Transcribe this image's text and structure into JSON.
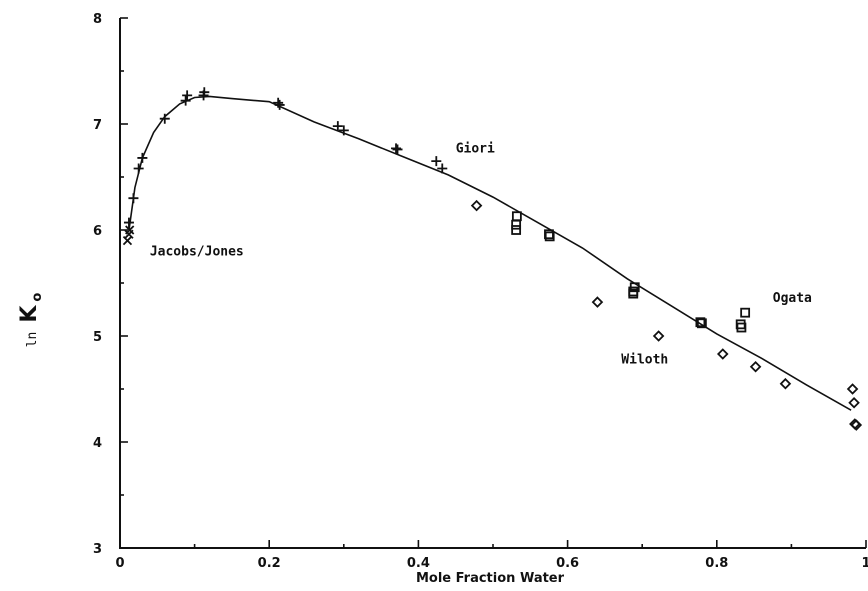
{
  "chart_data": {
    "type": "scatter",
    "title": "",
    "xlabel": "Mole Fraction Water",
    "ylabel": {
      "prefix": "ln",
      "symbol": "K",
      "subscript": "o"
    },
    "xlim": [
      0,
      1
    ],
    "ylim": [
      3,
      8
    ],
    "x_ticks": [
      {
        "value": 0,
        "label": "0"
      },
      {
        "value": 0.2,
        "label": "0.2"
      },
      {
        "value": 0.4,
        "label": "0.4"
      },
      {
        "value": 0.6,
        "label": "0.6"
      },
      {
        "value": 0.8,
        "label": "0.8"
      },
      {
        "value": 1,
        "label": "1"
      }
    ],
    "y_ticks": [
      {
        "value": 3,
        "label": "3"
      },
      {
        "value": 4,
        "label": "4"
      },
      {
        "value": 5,
        "label": "5"
      },
      {
        "value": 6,
        "label": "6"
      },
      {
        "value": 7,
        "label": "7"
      },
      {
        "value": 8,
        "label": "8"
      }
    ],
    "grid": false,
    "series": [
      {
        "marker": "cross",
        "points": [
          {
            "x": 0.01,
            "y": 5.9
          },
          {
            "x": 0.012,
            "y": 5.96
          },
          {
            "x": 0.013,
            "y": 6.0
          }
        ]
      },
      {
        "marker": "plus",
        "points": [
          {
            "x": 0.012,
            "y": 6.07
          },
          {
            "x": 0.018,
            "y": 6.3
          },
          {
            "x": 0.025,
            "y": 6.58
          },
          {
            "x": 0.03,
            "y": 6.68
          },
          {
            "x": 0.06,
            "y": 7.05
          },
          {
            "x": 0.088,
            "y": 7.22
          },
          {
            "x": 0.09,
            "y": 7.27
          },
          {
            "x": 0.112,
            "y": 7.27
          },
          {
            "x": 0.113,
            "y": 7.3
          },
          {
            "x": 0.212,
            "y": 7.2
          },
          {
            "x": 0.214,
            "y": 7.18
          },
          {
            "x": 0.292,
            "y": 6.98
          },
          {
            "x": 0.3,
            "y": 6.94
          },
          {
            "x": 0.37,
            "y": 6.77
          },
          {
            "x": 0.372,
            "y": 6.76
          },
          {
            "x": 0.424,
            "y": 6.65
          },
          {
            "x": 0.432,
            "y": 6.58
          }
        ]
      },
      {
        "marker": "square",
        "points": [
          {
            "x": 0.532,
            "y": 6.13
          },
          {
            "x": 0.531,
            "y": 6.05
          },
          {
            "x": 0.531,
            "y": 6.0
          },
          {
            "x": 0.575,
            "y": 5.96
          },
          {
            "x": 0.576,
            "y": 5.94
          },
          {
            "x": 0.69,
            "y": 5.46
          },
          {
            "x": 0.688,
            "y": 5.42
          },
          {
            "x": 0.688,
            "y": 5.4
          },
          {
            "x": 0.778,
            "y": 5.13
          },
          {
            "x": 0.78,
            "y": 5.12
          },
          {
            "x": 0.832,
            "y": 5.11
          },
          {
            "x": 0.833,
            "y": 5.08
          },
          {
            "x": 0.838,
            "y": 5.22
          }
        ]
      },
      {
        "marker": "diamond",
        "points": [
          {
            "x": 0.478,
            "y": 6.23
          },
          {
            "x": 0.64,
            "y": 5.32
          },
          {
            "x": 0.722,
            "y": 5.0
          },
          {
            "x": 0.808,
            "y": 4.83
          },
          {
            "x": 0.852,
            "y": 4.71
          },
          {
            "x": 0.892,
            "y": 4.55
          },
          {
            "x": 0.982,
            "y": 4.5
          },
          {
            "x": 0.984,
            "y": 4.37
          },
          {
            "x": 0.985,
            "y": 4.17
          },
          {
            "x": 0.987,
            "y": 4.16
          }
        ]
      }
    ],
    "fit_line": {
      "x": [
        0.012,
        0.02,
        0.03,
        0.045,
        0.06,
        0.08,
        0.1,
        0.12,
        0.15,
        0.2,
        0.26,
        0.32,
        0.38,
        0.44,
        0.5,
        0.56,
        0.62,
        0.68,
        0.74,
        0.8,
        0.86,
        0.92,
        0.98
      ],
      "y": [
        6.0,
        6.4,
        6.68,
        6.92,
        7.07,
        7.19,
        7.25,
        7.26,
        7.24,
        7.21,
        7.02,
        6.86,
        6.69,
        6.52,
        6.31,
        6.07,
        5.83,
        5.54,
        5.28,
        5.02,
        4.79,
        4.54,
        4.3
      ]
    },
    "annotations": [
      {
        "text": "Jacobs/Jones",
        "x": 0.04,
        "y": 5.76
      },
      {
        "text": "Giori",
        "x": 0.45,
        "y": 6.73
      },
      {
        "text": "Ogata",
        "x": 0.875,
        "y": 5.32
      },
      {
        "text": "Wiloth",
        "x": 0.672,
        "y": 4.74
      }
    ]
  }
}
